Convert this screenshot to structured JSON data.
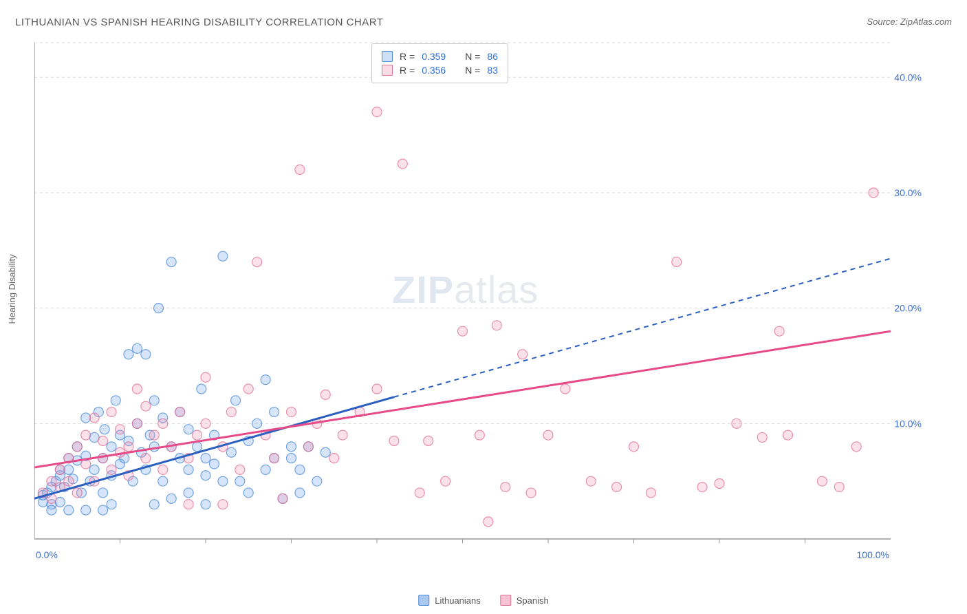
{
  "title": "LITHUANIAN VS SPANISH HEARING DISABILITY CORRELATION CHART",
  "source_prefix": "Source: ",
  "source_name": "ZipAtlas.com",
  "ylabel": "Hearing Disability",
  "watermark_bold": "ZIP",
  "watermark_rest": "atlas",
  "chart": {
    "type": "scatter",
    "background_color": "#ffffff",
    "grid_color": "#d9d9d9",
    "axis_color": "#999999",
    "tick_label_color": "#3b6fd1",
    "xlim": [
      0,
      100
    ],
    "ylim": [
      0,
      43
    ],
    "y_gridlines": [
      10,
      20,
      30,
      40,
      43
    ],
    "y_tick_labels": [
      "10.0%",
      "20.0%",
      "30.0%",
      "40.0%"
    ],
    "y_tick_values": [
      10,
      20,
      30,
      40
    ],
    "x_tick_labels": [
      "0.0%",
      "100.0%"
    ],
    "x_tick_values": [
      0,
      100
    ],
    "x_minor_ticks": [
      10,
      20,
      30,
      40,
      50,
      60,
      70,
      80,
      90
    ],
    "marker_radius": 7,
    "marker_fill_opacity": 0.28,
    "marker_stroke_opacity": 0.75,
    "marker_stroke_width": 1.2,
    "series": [
      {
        "name": "Lithuanians",
        "color": "#6aa3e8",
        "stroke": "#4a88d8",
        "trend_color": "#2a5fc0",
        "trend_width": 3,
        "trend_solid": {
          "x1": 0,
          "y1": 3.5,
          "x2": 42,
          "y2": 12.3
        },
        "trend_dash": {
          "x1": 42,
          "y1": 12.3,
          "x2": 100,
          "y2": 24.3
        },
        "R": "0.359",
        "N": "86",
        "points": [
          [
            1,
            3.2
          ],
          [
            1,
            3.8
          ],
          [
            1.5,
            4
          ],
          [
            2,
            3
          ],
          [
            2,
            4.5
          ],
          [
            2.5,
            5
          ],
          [
            3,
            3.2
          ],
          [
            3,
            5.5
          ],
          [
            3,
            6
          ],
          [
            2,
            2.5
          ],
          [
            3.5,
            4.5
          ],
          [
            4,
            6
          ],
          [
            4,
            7
          ],
          [
            4.5,
            5.2
          ],
          [
            5,
            6.8
          ],
          [
            5,
            8
          ],
          [
            5.5,
            4
          ],
          [
            6,
            7.2
          ],
          [
            6,
            10.5
          ],
          [
            6.5,
            5
          ],
          [
            7,
            6
          ],
          [
            7,
            8.8
          ],
          [
            7.5,
            11
          ],
          [
            8,
            4
          ],
          [
            8,
            7
          ],
          [
            8.2,
            9.5
          ],
          [
            9,
            5.5
          ],
          [
            9,
            8
          ],
          [
            9.5,
            12
          ],
          [
            10,
            6.5
          ],
          [
            10,
            9
          ],
          [
            10.5,
            7
          ],
          [
            11,
            16
          ],
          [
            11,
            8.5
          ],
          [
            11.5,
            5
          ],
          [
            12,
            10
          ],
          [
            12,
            16.5
          ],
          [
            12.5,
            7.5
          ],
          [
            13,
            6
          ],
          [
            13,
            16
          ],
          [
            13.5,
            9
          ],
          [
            14,
            8
          ],
          [
            14,
            12
          ],
          [
            14.5,
            20
          ],
          [
            15,
            5
          ],
          [
            15,
            10.5
          ],
          [
            16,
            8
          ],
          [
            16,
            24
          ],
          [
            17,
            7
          ],
          [
            17,
            11
          ],
          [
            18,
            6
          ],
          [
            18,
            9.5
          ],
          [
            19,
            8
          ],
          [
            19.5,
            13
          ],
          [
            20,
            5.5
          ],
          [
            20,
            7
          ],
          [
            21,
            6.5
          ],
          [
            21,
            9
          ],
          [
            22,
            24.5
          ],
          [
            23,
            7.5
          ],
          [
            23.5,
            12
          ],
          [
            24,
            5
          ],
          [
            25,
            8.5
          ],
          [
            26,
            10
          ],
          [
            27,
            6
          ],
          [
            27,
            13.8
          ],
          [
            28,
            7
          ],
          [
            29,
            3.5
          ],
          [
            30,
            8
          ],
          [
            30,
            7
          ],
          [
            31,
            6
          ],
          [
            31,
            4
          ],
          [
            32,
            8
          ],
          [
            33,
            5
          ],
          [
            34,
            7.5
          ],
          [
            22,
            5
          ],
          [
            25,
            4
          ],
          [
            28,
            11
          ],
          [
            16,
            3.5
          ],
          [
            18,
            4
          ],
          [
            20,
            3
          ],
          [
            14,
            3
          ],
          [
            9,
            3
          ],
          [
            8,
            2.5
          ],
          [
            6,
            2.5
          ],
          [
            4,
            2.5
          ]
        ]
      },
      {
        "name": "Spanish",
        "color": "#f292b2",
        "stroke": "#e16f95",
        "trend_color": "#e64a88",
        "trend_width": 3,
        "trend_solid": {
          "x1": 0,
          "y1": 6.2,
          "x2": 100,
          "y2": 18
        },
        "trend_dash": null,
        "R": "0.356",
        "N": "83",
        "points": [
          [
            1,
            4
          ],
          [
            2,
            3.5
          ],
          [
            2,
            5
          ],
          [
            3,
            4.5
          ],
          [
            3,
            6
          ],
          [
            4,
            5
          ],
          [
            4,
            7
          ],
          [
            5,
            4
          ],
          [
            5,
            8
          ],
          [
            6,
            6.5
          ],
          [
            6,
            9
          ],
          [
            7,
            5
          ],
          [
            7,
            10.5
          ],
          [
            8,
            7
          ],
          [
            8,
            8.5
          ],
          [
            9,
            6
          ],
          [
            9,
            11
          ],
          [
            10,
            7.5
          ],
          [
            10,
            9.5
          ],
          [
            11,
            5.5
          ],
          [
            11,
            8
          ],
          [
            12,
            10
          ],
          [
            12,
            13
          ],
          [
            13,
            7
          ],
          [
            13,
            11.5
          ],
          [
            14,
            9
          ],
          [
            15,
            6
          ],
          [
            15,
            10
          ],
          [
            16,
            8
          ],
          [
            17,
            11
          ],
          [
            18,
            7
          ],
          [
            19,
            9
          ],
          [
            20,
            10
          ],
          [
            20,
            14
          ],
          [
            22,
            8
          ],
          [
            23,
            11
          ],
          [
            24,
            6
          ],
          [
            25,
            13
          ],
          [
            26,
            24
          ],
          [
            27,
            9
          ],
          [
            28,
            7
          ],
          [
            29,
            3.5
          ],
          [
            30,
            11
          ],
          [
            31,
            32
          ],
          [
            32,
            8
          ],
          [
            33,
            10
          ],
          [
            34,
            12.5
          ],
          [
            35,
            7
          ],
          [
            36,
            9
          ],
          [
            38,
            11
          ],
          [
            40,
            13
          ],
          [
            40,
            37
          ],
          [
            42,
            8.5
          ],
          [
            43,
            32.5
          ],
          [
            45,
            4
          ],
          [
            46,
            8.5
          ],
          [
            48,
            5
          ],
          [
            50,
            18
          ],
          [
            52,
            9
          ],
          [
            53,
            1.5
          ],
          [
            54,
            18.5
          ],
          [
            55,
            4.5
          ],
          [
            57,
            16
          ],
          [
            58,
            4
          ],
          [
            60,
            9
          ],
          [
            62,
            13
          ],
          [
            65,
            5
          ],
          [
            68,
            4.5
          ],
          [
            70,
            8
          ],
          [
            72,
            4
          ],
          [
            75,
            24
          ],
          [
            78,
            4.5
          ],
          [
            80,
            4.8
          ],
          [
            82,
            10
          ],
          [
            85,
            8.8
          ],
          [
            87,
            18
          ],
          [
            88,
            9
          ],
          [
            92,
            5
          ],
          [
            94,
            4.5
          ],
          [
            96,
            8
          ],
          [
            98,
            30
          ],
          [
            22,
            3
          ],
          [
            18,
            3
          ]
        ]
      }
    ]
  },
  "stats_box": {
    "r_label": "R =",
    "n_label": "N ="
  },
  "bottom_legend": [
    {
      "label": "Lithuanians",
      "fill": "#a9c9f0",
      "stroke": "#4a88d8"
    },
    {
      "label": "Spanish",
      "fill": "#f7c3d4",
      "stroke": "#e16f95"
    }
  ]
}
